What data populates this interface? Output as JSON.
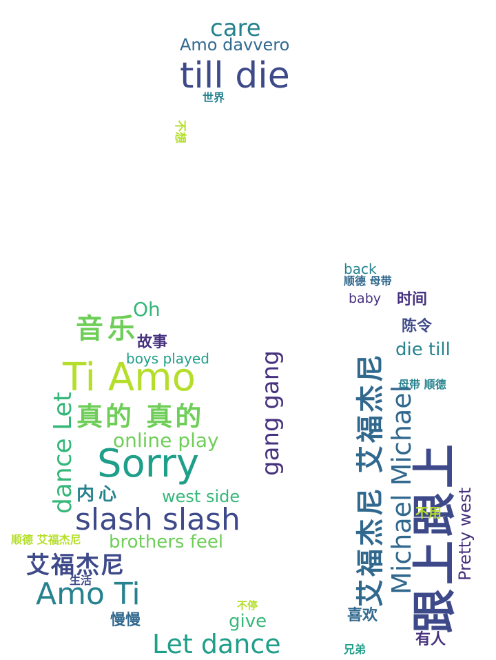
{
  "palette": {
    "dark_purple": "#46327e",
    "indigo": "#3e4989",
    "blue": "#31688e",
    "teal": "#26828e",
    "green_teal": "#1f9e89",
    "green": "#35b779",
    "light_green": "#6ece58",
    "yellow_green": "#b5de2b"
  },
  "words": [
    {
      "id": "care",
      "text": "care"
    },
    {
      "id": "amo-davvero",
      "text": "Amo davvero"
    },
    {
      "id": "till-die",
      "text": "till die"
    },
    {
      "id": "shijie",
      "text": "世界"
    },
    {
      "id": "buxiang",
      "text": "不想"
    },
    {
      "id": "oh",
      "text": "Oh"
    },
    {
      "id": "yinyue",
      "text": "音乐"
    },
    {
      "id": "gushi",
      "text": "故事"
    },
    {
      "id": "boys-played",
      "text": "boys played"
    },
    {
      "id": "ti-amo",
      "text": "Ti Amo"
    },
    {
      "id": "dance-let",
      "text": "dance Let"
    },
    {
      "id": "zhende",
      "text": "真的 真的"
    },
    {
      "id": "online-play",
      "text": "online play"
    },
    {
      "id": "sorry",
      "text": "Sorry"
    },
    {
      "id": "gang-gang",
      "text": "gang gang"
    },
    {
      "id": "neixin",
      "text": "内心"
    },
    {
      "id": "west-side",
      "text": "west side"
    },
    {
      "id": "slash-slash",
      "text": "slash slash"
    },
    {
      "id": "shunde-aifu",
      "text": "顺德 艾福杰尼"
    },
    {
      "id": "brothers-feel",
      "text": "brothers feel"
    },
    {
      "id": "aifujieni",
      "text": "艾福杰尼"
    },
    {
      "id": "shenghuo",
      "text": "生活"
    },
    {
      "id": "amo-ti",
      "text": "Amo Ti"
    },
    {
      "id": "buting",
      "text": "不停"
    },
    {
      "id": "give",
      "text": "give"
    },
    {
      "id": "manman",
      "text": "慢慢"
    },
    {
      "id": "let-dance",
      "text": "Let dance"
    },
    {
      "id": "back",
      "text": "back"
    },
    {
      "id": "shunde-mudai",
      "text": "顺德 母带"
    },
    {
      "id": "baby",
      "text": "baby"
    },
    {
      "id": "shijian",
      "text": "时间"
    },
    {
      "id": "aifu-aifu",
      "text": "艾福杰尼 艾福杰尼"
    },
    {
      "id": "chenling",
      "text": "陈令"
    },
    {
      "id": "die-till",
      "text": "die till"
    },
    {
      "id": "mudai-shunde",
      "text": "母带 顺德"
    },
    {
      "id": "michael-michael",
      "text": "Michael Michael"
    },
    {
      "id": "genshang",
      "text": "跟上跟上"
    },
    {
      "id": "buyong",
      "text": "不用"
    },
    {
      "id": "pretty-west",
      "text": "Pretty west"
    },
    {
      "id": "xihuan",
      "text": "喜欢"
    },
    {
      "id": "youren",
      "text": "有人"
    },
    {
      "id": "xiongdi",
      "text": "兄弟"
    }
  ]
}
